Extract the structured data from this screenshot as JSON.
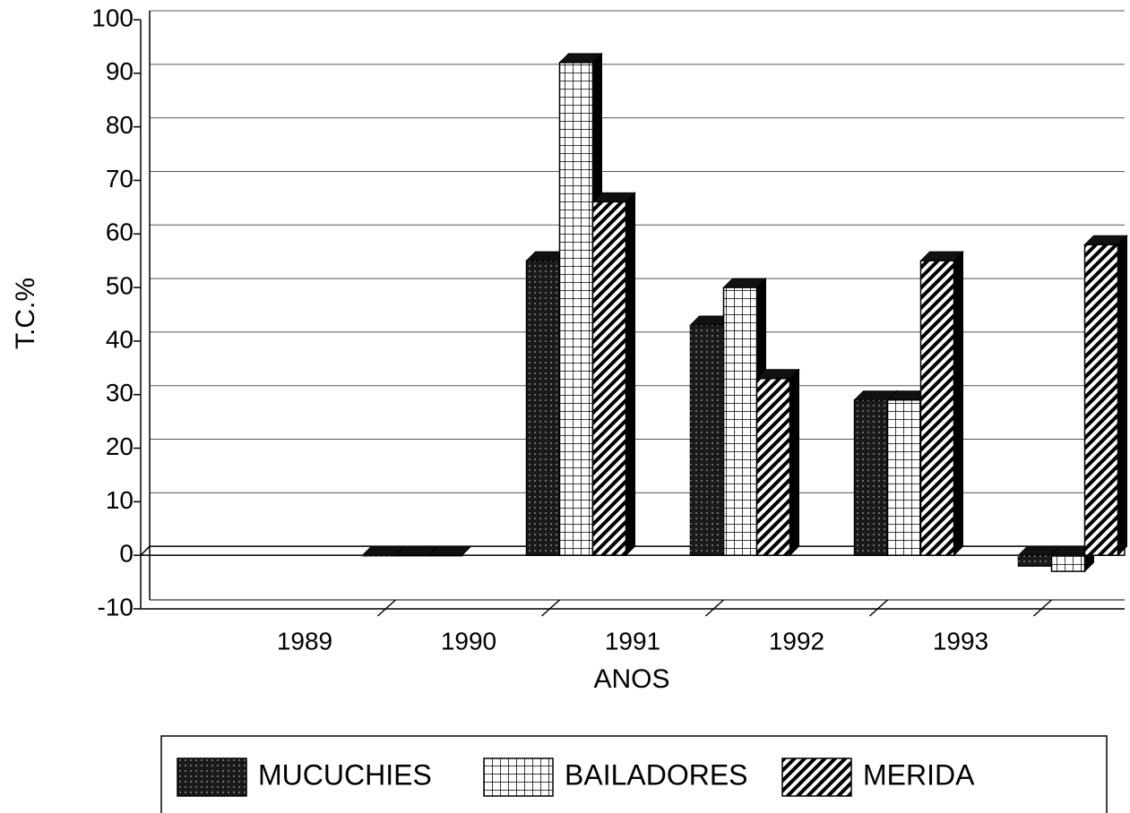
{
  "chart_data": {
    "type": "bar3d",
    "x_label": "ANOS",
    "y_label": "T.C.%",
    "categories": [
      "1989",
      "1990",
      "1991",
      "1992",
      "1993"
    ],
    "series": [
      {
        "name": "MUCUCHIES",
        "color": "#1a1a1a",
        "pattern": "dots",
        "values": [
          0,
          55,
          43,
          29,
          -2
        ]
      },
      {
        "name": "BAILADORES",
        "color": "#ffffff",
        "pattern": "grid",
        "values": [
          0,
          92,
          50,
          29,
          -3
        ]
      },
      {
        "name": "MERIDA",
        "color": "#ffffff",
        "pattern": "hatch",
        "values": [
          0,
          66,
          33,
          55,
          58
        ]
      }
    ],
    "ylim": [
      -10,
      100
    ],
    "yticks": [
      -10,
      0,
      10,
      20,
      30,
      40,
      50,
      60,
      70,
      80,
      90,
      100
    ],
    "grid": true,
    "legend": "bottom"
  }
}
